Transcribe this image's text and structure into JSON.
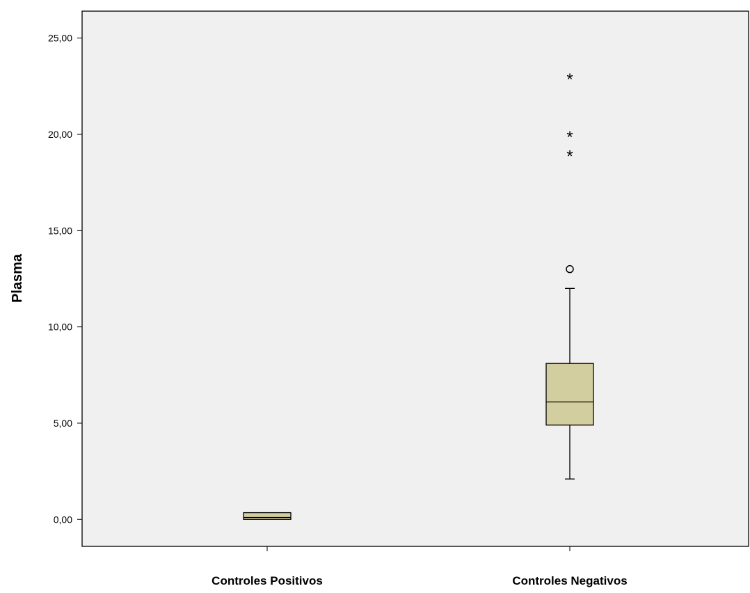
{
  "chart_data": {
    "type": "boxplot",
    "title": "",
    "xlabel": "",
    "ylabel": "Plasma",
    "ylim": [
      -1.4,
      26.4
    ],
    "y_ticks": [
      {
        "value": 25,
        "label": "25,00"
      },
      {
        "value": 20,
        "label": "20,00"
      },
      {
        "value": 15,
        "label": "15,00"
      },
      {
        "value": 10,
        "label": "10,00"
      },
      {
        "value": 5,
        "label": "5,00"
      },
      {
        "value": 0,
        "label": "0,00"
      }
    ],
    "categories": [
      "Controles Positivos",
      "Controles Negativos"
    ],
    "boxes": [
      {
        "category": "Controles Positivos",
        "whisker_low": 0.0,
        "q1": 0.0,
        "median": 0.1,
        "q3": 0.35,
        "whisker_high": 0.35,
        "outliers": [],
        "extremes": []
      },
      {
        "category": "Controles Negativos",
        "whisker_low": 2.1,
        "q1": 4.9,
        "median": 6.1,
        "q3": 8.1,
        "whisker_high": 12.0,
        "outliers": [
          13.0
        ],
        "extremes": [
          19.0,
          20.0,
          23.0
        ]
      }
    ],
    "grid": false,
    "legend": "none",
    "colors": {
      "plot_background": "#f0f0f0",
      "box_fill": "#d3ce9f",
      "stroke": "#000000"
    },
    "markers": {
      "outlier": "circle",
      "extreme": "asterisk"
    }
  }
}
